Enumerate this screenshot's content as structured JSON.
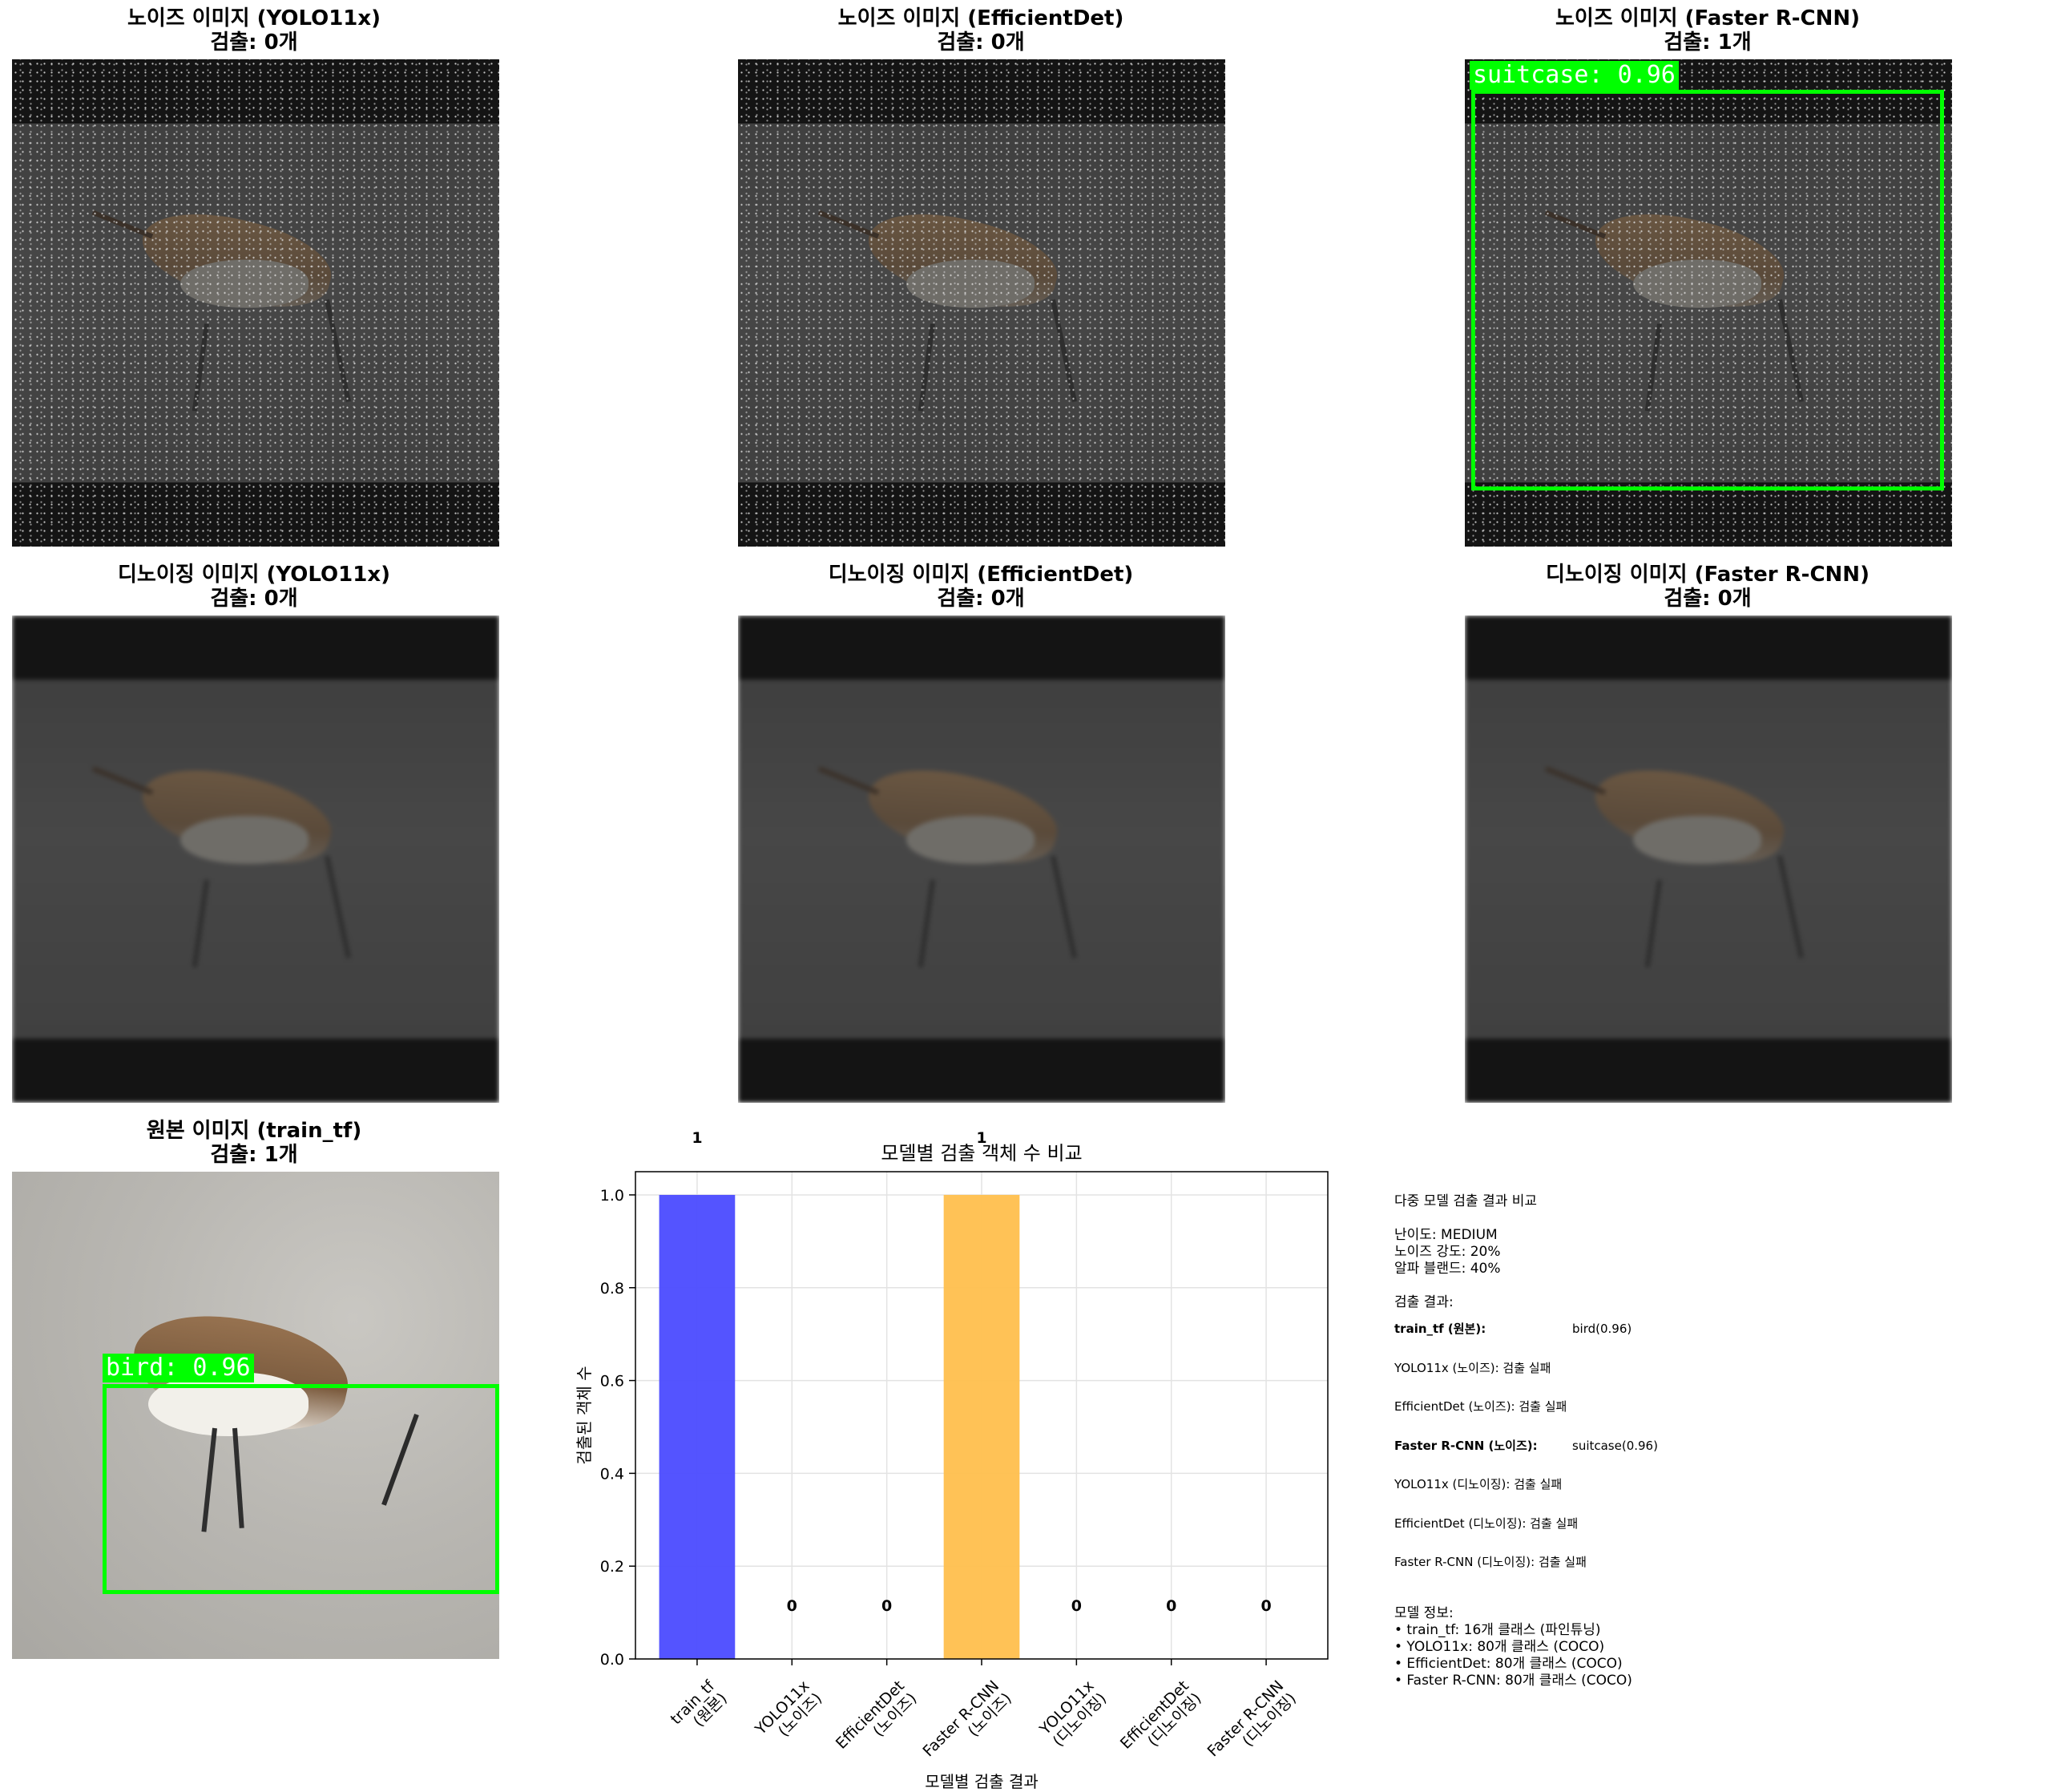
{
  "panels": [
    {
      "title": "노이즈 이미지 (YOLO11x)",
      "subtitle": "검출: 0개"
    },
    {
      "title": "노이즈 이미지 (EfficientDet)",
      "subtitle": "검출: 0개"
    },
    {
      "title": "노이즈 이미지 (Faster R-CNN)",
      "subtitle": "검출: 1개",
      "detection_label": "suitcase: 0.96"
    },
    {
      "title": "디노이징 이미지 (YOLO11x)",
      "subtitle": "검출: 0개"
    },
    {
      "title": "디노이징 이미지 (EfficientDet)",
      "subtitle": "검출: 0개"
    },
    {
      "title": "디노이징 이미지 (Faster R-CNN)",
      "subtitle": "검출: 0개"
    },
    {
      "title": "원본 이미지 (train_tf)",
      "subtitle": "검출: 1개",
      "detection_label": "bird: 0.96"
    }
  ],
  "chart_data": {
    "type": "bar",
    "title": "모델별 검출 객체 수 비교",
    "xlabel": "모델별 검출 결과",
    "ylabel": "검출된 객체 수",
    "categories": [
      "train_tf\n(원본)",
      "YOLO11x\n(노이즈)",
      "EfficientDet\n(노이즈)",
      "Faster R-CNN\n(노이즈)",
      "YOLO11x\n(디노이징)",
      "EfficientDet\n(디노이징)",
      "Faster R-CNN\n(디노이징)"
    ],
    "values": [
      1,
      0,
      0,
      1,
      0,
      0,
      0
    ],
    "value_labels": [
      "1",
      "0",
      "0",
      "1",
      "0",
      "0",
      "0"
    ],
    "bar_colors": [
      "#4b4bff",
      "#ffffff",
      "#ffffff",
      "#ffbf4d",
      "#ffffff",
      "#ffffff",
      "#ffffff"
    ],
    "ylim": [
      0,
      1.05
    ],
    "yticks": [
      "0.0",
      "0.2",
      "0.4",
      "0.6",
      "0.8",
      "1.0"
    ],
    "grid": true
  },
  "info": {
    "heading": "다중 모델 검출 결과 비교",
    "difficulty": "난이도: MEDIUM",
    "noise_strength": "노이즈 강도: 20%",
    "alpha_blend": "알파 블랜드: 40%",
    "results_heading": "검출 결과:",
    "results": [
      {
        "label": "train_tf (원본):",
        "value": "bird(0.96)",
        "bold": true
      },
      {
        "label": "YOLO11x (노이즈): 검출 실패",
        "value": "",
        "bold": false
      },
      {
        "label": "EfficientDet (노이즈): 검출 실패",
        "value": "",
        "bold": false
      },
      {
        "label": "Faster R-CNN (노이즈):",
        "value": "suitcase(0.96)",
        "bold": true
      },
      {
        "label": "YOLO11x (디노이징): 검출 실패",
        "value": "",
        "bold": false
      },
      {
        "label": "EfficientDet (디노이징): 검출 실패",
        "value": "",
        "bold": false
      },
      {
        "label": "Faster R-CNN (디노이징): 검출 실패",
        "value": "",
        "bold": false
      }
    ],
    "model_heading": "모델 정보:",
    "models": [
      "• train_tf: 16개 클래스 (파인튜닝)",
      "• YOLO11x: 80개 클래스 (COCO)",
      "• EfficientDet: 80개 클래스 (COCO)",
      "• Faster R-CNN: 80개 클래스 (COCO)"
    ]
  }
}
